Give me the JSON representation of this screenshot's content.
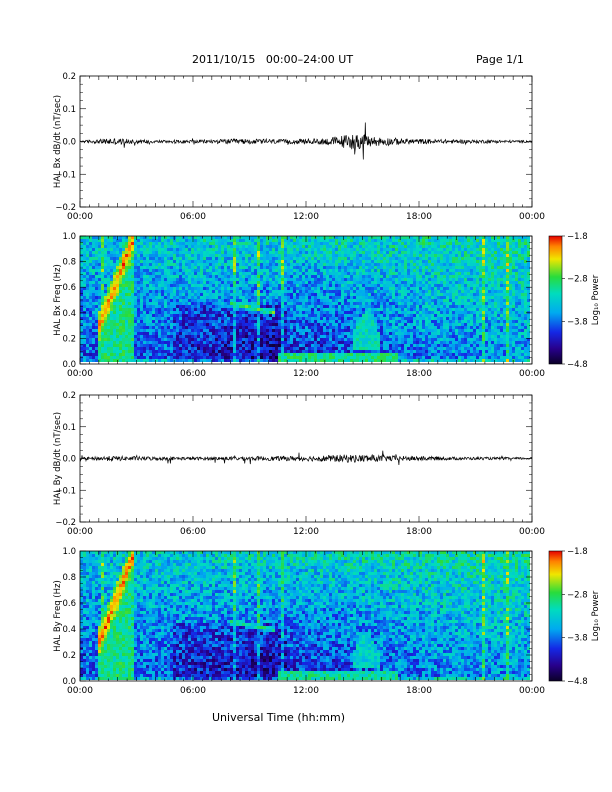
{
  "header": {
    "title": "2011/10/15   00:00–24:00 UT",
    "page": "Page 1/1"
  },
  "xaxis": {
    "label": "Universal Time (hh:mm)",
    "ticks": [
      "00:00",
      "06:00",
      "12:00",
      "18:00",
      "00:00"
    ]
  },
  "chart_data": [
    {
      "type": "line",
      "ylabel": "HAL Bx dB/dt (nT/sec)",
      "ylim": [
        -0.2,
        0.2
      ],
      "yticks": [
        "0.2",
        "0.1",
        "0.0",
        "−0.1",
        "−0.2"
      ],
      "xticks": [
        "00:00",
        "06:00",
        "12:00",
        "18:00",
        "00:00"
      ],
      "x_range_hours": [
        0,
        24
      ],
      "series": [
        {
          "noise_envelope": [
            {
              "t": 0,
              "amp": 0.002
            },
            {
              "t": 1.0,
              "amp": 0.004
            },
            {
              "t": 1.6,
              "amp": 0.007
            },
            {
              "t": 2.5,
              "amp": 0.005
            },
            {
              "t": 4,
              "amp": 0.003
            },
            {
              "t": 6,
              "amp": 0.003
            },
            {
              "t": 8.5,
              "amp": 0.005
            },
            {
              "t": 11,
              "amp": 0.004
            },
            {
              "t": 13,
              "amp": 0.006
            },
            {
              "t": 14.5,
              "amp": 0.016
            },
            {
              "t": 15.5,
              "amp": 0.01
            },
            {
              "t": 17,
              "amp": 0.006
            },
            {
              "t": 19,
              "amp": 0.004
            },
            {
              "t": 22,
              "amp": 0.003
            },
            {
              "t": 24,
              "amp": 0.002
            }
          ]
        }
      ]
    },
    {
      "type": "heatmap",
      "ylabel": "HAL Bx Freq (Hz)",
      "ylim": [
        0,
        1.0
      ],
      "yticks": [
        "1.0",
        "0.8",
        "0.6",
        "0.4",
        "0.2",
        "0.0"
      ],
      "xticks": [
        "00:00",
        "06:00",
        "12:00",
        "18:00",
        "00:00"
      ],
      "colorbar": {
        "label": "Log₁₀ Power",
        "ticks": [
          "−1.8",
          "−2.8",
          "−3.8",
          "−4.8"
        ],
        "range": [
          -4.8,
          -1.8
        ]
      },
      "features": [
        {
          "name": "rising tone",
          "t0": 1.0,
          "t1": 2.8,
          "f0": 0.28,
          "f1": 0.95,
          "level": -2.0
        },
        {
          "name": "falling tone",
          "t0": 8.0,
          "t1": 10.4,
          "f0": 0.47,
          "f1": 0.39,
          "level": -2.7
        },
        {
          "name": "low band",
          "t0": 10.5,
          "t1": 17.0,
          "f0": 0.02,
          "f1": 0.08,
          "level": -3.0
        },
        {
          "name": "burst",
          "t0": 14.5,
          "t1": 16.0,
          "f0": 0.1,
          "f1": 0.4,
          "level": -3.2
        }
      ]
    },
    {
      "type": "line",
      "ylabel": "HAL By dB/dt (nT/sec)",
      "ylim": [
        -0.2,
        0.2
      ],
      "yticks": [
        "0.2",
        "0.1",
        "0.0",
        "−0.1",
        "−0.2"
      ],
      "xticks": [
        "00:00",
        "06:00",
        "12:00",
        "18:00",
        "00:00"
      ],
      "x_range_hours": [
        0,
        24
      ],
      "series": [
        {
          "noise_envelope": [
            {
              "t": 0,
              "amp": 0.002
            },
            {
              "t": 1.5,
              "amp": 0.005
            },
            {
              "t": 3,
              "amp": 0.004
            },
            {
              "t": 6,
              "amp": 0.003
            },
            {
              "t": 9,
              "amp": 0.004
            },
            {
              "t": 12,
              "amp": 0.005
            },
            {
              "t": 14.3,
              "amp": 0.008
            },
            {
              "t": 15.5,
              "amp": 0.007
            },
            {
              "t": 17,
              "amp": 0.005
            },
            {
              "t": 20,
              "amp": 0.003
            },
            {
              "t": 24,
              "amp": 0.002
            }
          ]
        }
      ]
    },
    {
      "type": "heatmap",
      "ylabel": "HAL By Freq (Hz)",
      "ylim": [
        0,
        1.0
      ],
      "yticks": [
        "1.0",
        "0.8",
        "0.6",
        "0.4",
        "0.2",
        "0.0"
      ],
      "xticks": [
        "00:00",
        "06:00",
        "12:00",
        "18:00",
        "00:00"
      ],
      "colorbar": {
        "label": "Log₁₀ Power",
        "ticks": [
          "−1.8",
          "−2.8",
          "−3.8",
          "−4.8"
        ],
        "range": [
          -4.8,
          -1.8
        ]
      },
      "features": [
        {
          "name": "rising tone",
          "t0": 1.0,
          "t1": 2.8,
          "f0": 0.28,
          "f1": 0.95,
          "level": -2.0
        },
        {
          "name": "falling tone",
          "t0": 8.0,
          "t1": 10.4,
          "f0": 0.45,
          "f1": 0.39,
          "level": -2.8
        },
        {
          "name": "low band",
          "t0": 10.5,
          "t1": 17.0,
          "f0": 0.02,
          "f1": 0.07,
          "level": -3.1
        },
        {
          "name": "burst",
          "t0": 14.5,
          "t1": 16.0,
          "f0": 0.1,
          "f1": 0.35,
          "level": -3.3
        }
      ]
    }
  ]
}
